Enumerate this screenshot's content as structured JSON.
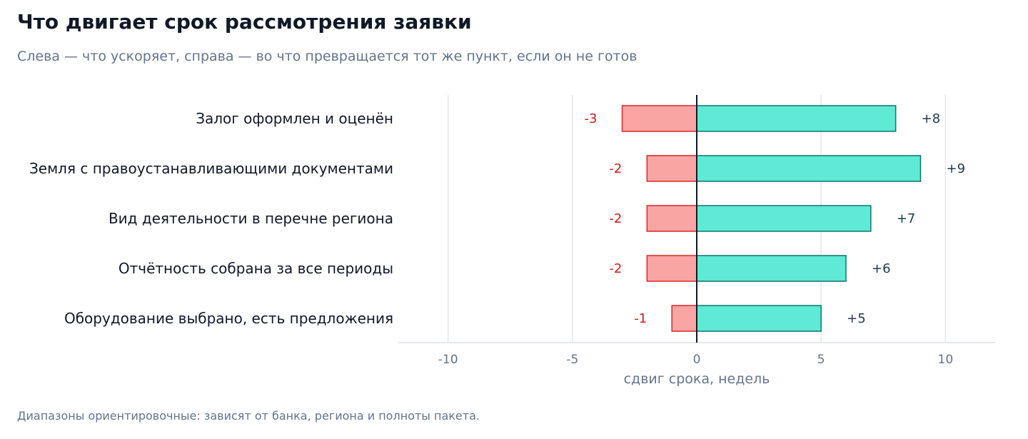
{
  "header": {
    "title": "Что двигает срок рассмотрения заявки",
    "subtitle": "Слева — что ускоряет, справа — во что превращается тот же пункт, если он не готов"
  },
  "footnote": "Диапазоны ориентировочные: зависят от банка, региона и полноты пакета.",
  "colors": {
    "negative_fill": "#f9a5a4",
    "negative_stroke": "#dc2626",
    "positive_fill": "#5eead4",
    "positive_stroke": "#0f766e",
    "grid": "#e5e7eb",
    "zero_line": "#111827"
  },
  "chart_data": {
    "type": "bar",
    "orientation": "horizontal",
    "categories": [
      "Залог оформлен и оценён",
      "Земля с правоустанавливающими документами",
      "Вид деятельности в перечне региона",
      "Отчётность собрана за все периоды",
      "Оборудование выбрано, есть предложения"
    ],
    "series": [
      {
        "values": [
          -3,
          -2,
          -2,
          -2,
          -1
        ],
        "labels": [
          "-3",
          "-2",
          "-2",
          "-2",
          "-1"
        ]
      },
      {
        "values": [
          8,
          9,
          7,
          6,
          5
        ],
        "labels": [
          "+8",
          "+9",
          "+7",
          "+6",
          "+5"
        ]
      }
    ],
    "xlabel": "сдвиг срока, недель",
    "xlim": [
      -12,
      12
    ],
    "xticks": [
      -10,
      -5,
      0,
      5,
      10
    ],
    "xtick_labels": [
      "-10",
      "-5",
      "0",
      "5",
      "10"
    ],
    "grid": true
  }
}
